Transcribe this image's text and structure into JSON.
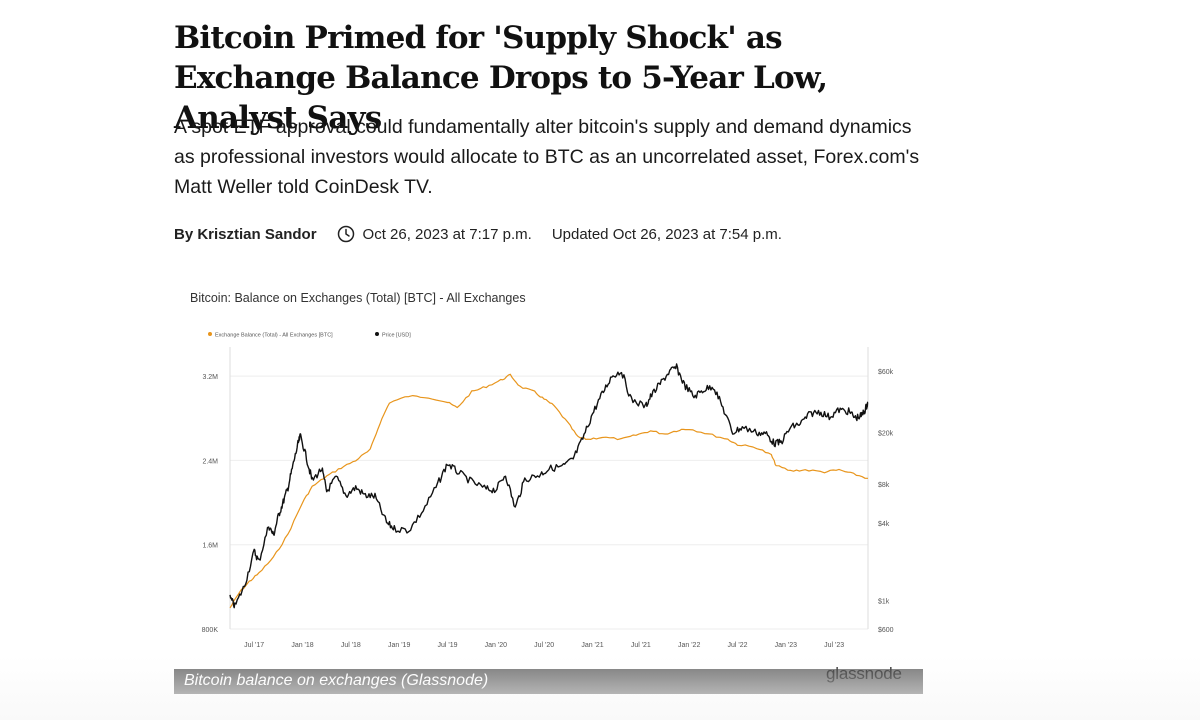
{
  "article": {
    "headline": "Bitcoin Primed for 'Supply Shock' as Exchange Balance Drops to 5-Year Low, Analyst Says",
    "dek": "A spot ETF approval could fundamentally alter bitcoin's supply and demand dynamics as professional investors would allocate to BTC as an uncorrelated asset, Forex.com's Matt Weller told CoinDesk TV.",
    "byline": "By Krisztian Sandor",
    "published": "Oct 26, 2023 at 7:17 p.m.",
    "updated": "Updated Oct 26, 2023 at 7:54 p.m."
  },
  "figure": {
    "caption": "Bitcoin balance on exchanges (Glassnode)",
    "watermark": "glassnode"
  },
  "colors": {
    "balance": "#e8951c",
    "price": "#111111",
    "grid": "#eeeeee"
  },
  "chart_data": {
    "type": "line",
    "title": "Bitcoin: Balance on Exchanges (Total) [BTC] - All Exchanges",
    "legend": [
      "Exchange Balance (Total) - All Exchanges [BTC]",
      "Price [USD]"
    ],
    "legend_position": "top-left",
    "x_ticks": [
      "Jul '17",
      "Jan '18",
      "Jul '18",
      "Jan '19",
      "Jul '19",
      "Jan '20",
      "Jul '20",
      "Jan '21",
      "Jul '21",
      "Jan '22",
      "Jul '22",
      "Jan '23",
      "Jul '23"
    ],
    "y_left_ticks": [
      "3.2M",
      "2.4M",
      "1.6M",
      "800K"
    ],
    "y_left_values": [
      3200000,
      2400000,
      1600000,
      800000
    ],
    "y_left_range": [
      800000,
      3400000
    ],
    "y_right_ticks": [
      "$60k",
      "$20k",
      "$8k",
      "$4k",
      "$1k",
      "$600"
    ],
    "y_right_values": [
      60000,
      20000,
      8000,
      4000,
      1000,
      600
    ],
    "y_right_scale": "log",
    "y_right_range": [
      600,
      80000
    ],
    "x_range": [
      2017.25,
      2023.85
    ],
    "series": [
      {
        "name": "Exchange Balance (Total) - All Exchanges [BTC]",
        "axis": "left",
        "points": [
          [
            2017.25,
            1000000
          ],
          [
            2017.35,
            1150000
          ],
          [
            2017.45,
            1250000
          ],
          [
            2017.55,
            1330000
          ],
          [
            2017.7,
            1480000
          ],
          [
            2017.85,
            1700000
          ],
          [
            2018.0,
            2000000
          ],
          [
            2018.1,
            2150000
          ],
          [
            2018.25,
            2250000
          ],
          [
            2018.4,
            2330000
          ],
          [
            2018.55,
            2400000
          ],
          [
            2018.7,
            2500000
          ],
          [
            2018.8,
            2750000
          ],
          [
            2018.9,
            2950000
          ],
          [
            2019.1,
            3010000
          ],
          [
            2019.3,
            3000000
          ],
          [
            2019.5,
            2950000
          ],
          [
            2019.6,
            2900000
          ],
          [
            2019.75,
            3050000
          ],
          [
            2019.9,
            3100000
          ],
          [
            2020.05,
            3160000
          ],
          [
            2020.15,
            3210000
          ],
          [
            2020.25,
            3100000
          ],
          [
            2020.4,
            3050000
          ],
          [
            2020.5,
            2980000
          ],
          [
            2020.6,
            2920000
          ],
          [
            2020.75,
            2750000
          ],
          [
            2020.85,
            2620000
          ],
          [
            2020.95,
            2600000
          ],
          [
            2021.1,
            2620000
          ],
          [
            2021.3,
            2600000
          ],
          [
            2021.45,
            2640000
          ],
          [
            2021.6,
            2680000
          ],
          [
            2021.75,
            2650000
          ],
          [
            2021.9,
            2690000
          ],
          [
            2022.0,
            2700000
          ],
          [
            2022.2,
            2650000
          ],
          [
            2022.4,
            2600000
          ],
          [
            2022.5,
            2550000
          ],
          [
            2022.7,
            2520000
          ],
          [
            2022.85,
            2450000
          ],
          [
            2022.9,
            2350000
          ],
          [
            2023.05,
            2300000
          ],
          [
            2023.2,
            2310000
          ],
          [
            2023.4,
            2290000
          ],
          [
            2023.55,
            2310000
          ],
          [
            2023.7,
            2270000
          ],
          [
            2023.85,
            2230000
          ]
        ]
      },
      {
        "name": "Price [USD]",
        "axis": "right",
        "points": [
          [
            2017.25,
            1050
          ],
          [
            2017.3,
            900
          ],
          [
            2017.4,
            1300
          ],
          [
            2017.5,
            2400
          ],
          [
            2017.55,
            2000
          ],
          [
            2017.65,
            3800
          ],
          [
            2017.7,
            3200
          ],
          [
            2017.75,
            4500
          ],
          [
            2017.8,
            5800
          ],
          [
            2017.85,
            7500
          ],
          [
            2017.9,
            11000
          ],
          [
            2017.95,
            16000
          ],
          [
            2017.98,
            19000
          ],
          [
            2018.05,
            12000
          ],
          [
            2018.1,
            8500
          ],
          [
            2018.2,
            10500
          ],
          [
            2018.25,
            7000
          ],
          [
            2018.35,
            9000
          ],
          [
            2018.45,
            6500
          ],
          [
            2018.55,
            7500
          ],
          [
            2018.65,
            6500
          ],
          [
            2018.75,
            6400
          ],
          [
            2018.87,
            4000
          ],
          [
            2018.95,
            3600
          ],
          [
            2019.1,
            3500
          ],
          [
            2019.25,
            5000
          ],
          [
            2019.4,
            8000
          ],
          [
            2019.5,
            11500
          ],
          [
            2019.6,
            10000
          ],
          [
            2019.75,
            8300
          ],
          [
            2019.9,
            7300
          ],
          [
            2020.0,
            7200
          ],
          [
            2020.1,
            9500
          ],
          [
            2020.2,
            5200
          ],
          [
            2020.3,
            8700
          ],
          [
            2020.45,
            9400
          ],
          [
            2020.55,
            10500
          ],
          [
            2020.7,
            11000
          ],
          [
            2020.8,
            12500
          ],
          [
            2020.9,
            18000
          ],
          [
            2021.0,
            28000
          ],
          [
            2021.1,
            40000
          ],
          [
            2021.2,
            55000
          ],
          [
            2021.3,
            60000
          ],
          [
            2021.4,
            36000
          ],
          [
            2021.55,
            32000
          ],
          [
            2021.6,
            38000
          ],
          [
            2021.7,
            48000
          ],
          [
            2021.8,
            60000
          ],
          [
            2021.87,
            64000
          ],
          [
            2021.95,
            47000
          ],
          [
            2022.05,
            38000
          ],
          [
            2022.15,
            43000
          ],
          [
            2022.25,
            46000
          ],
          [
            2022.35,
            31000
          ],
          [
            2022.45,
            20000
          ],
          [
            2022.55,
            22000
          ],
          [
            2022.7,
            20000
          ],
          [
            2022.8,
            19500
          ],
          [
            2022.88,
            16500
          ],
          [
            2022.95,
            16800
          ],
          [
            2023.05,
            22000
          ],
          [
            2023.15,
            23500
          ],
          [
            2023.25,
            28000
          ],
          [
            2023.35,
            29000
          ],
          [
            2023.45,
            26500
          ],
          [
            2023.55,
            30000
          ],
          [
            2023.65,
            29200
          ],
          [
            2023.72,
            26000
          ],
          [
            2023.78,
            27000
          ],
          [
            2023.82,
            30000
          ],
          [
            2023.85,
            34500
          ]
        ]
      }
    ]
  }
}
